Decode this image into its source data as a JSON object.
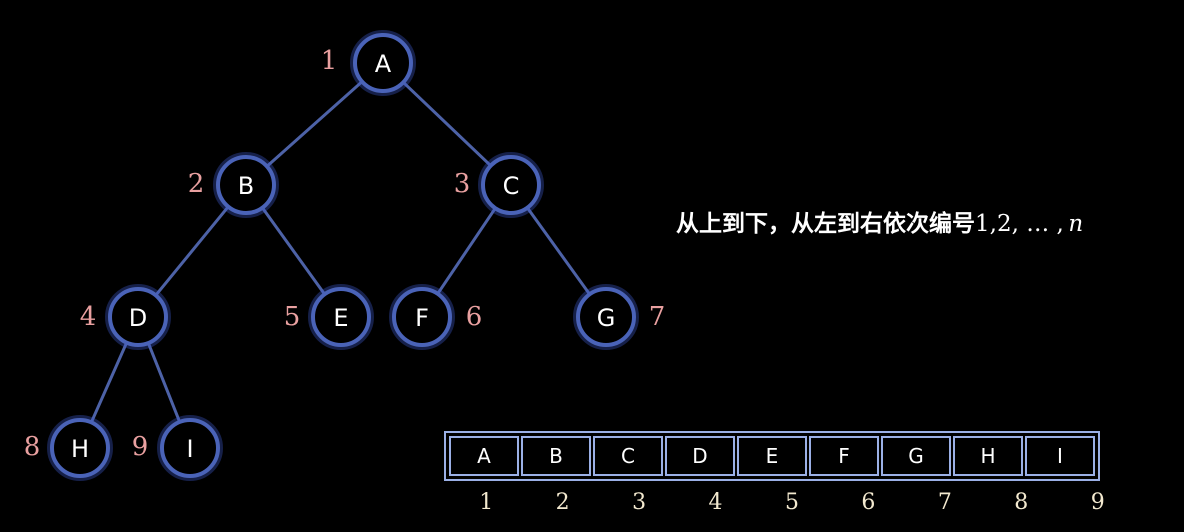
{
  "tree": {
    "nodes": [
      {
        "id": "A",
        "label": "A",
        "number": "1"
      },
      {
        "id": "B",
        "label": "B",
        "number": "2"
      },
      {
        "id": "C",
        "label": "C",
        "number": "3"
      },
      {
        "id": "D",
        "label": "D",
        "number": "4"
      },
      {
        "id": "E",
        "label": "E",
        "number": "5"
      },
      {
        "id": "F",
        "label": "F",
        "number": "6"
      },
      {
        "id": "G",
        "label": "G",
        "number": "7"
      },
      {
        "id": "H",
        "label": "H",
        "number": "8"
      },
      {
        "id": "I",
        "label": "I",
        "number": "9"
      }
    ],
    "edges": [
      [
        "A",
        "B"
      ],
      [
        "A",
        "C"
      ],
      [
        "B",
        "D"
      ],
      [
        "B",
        "E"
      ],
      [
        "C",
        "F"
      ],
      [
        "C",
        "G"
      ],
      [
        "D",
        "H"
      ],
      [
        "D",
        "I"
      ]
    ]
  },
  "caption": {
    "text": "从上到下，从左到右依次编号",
    "sequence": "1,2, … ,",
    "variable": "n"
  },
  "array": {
    "cells": [
      "A",
      "B",
      "C",
      "D",
      "E",
      "F",
      "G",
      "H",
      "I"
    ],
    "indices": [
      "1",
      "2",
      "3",
      "4",
      "5",
      "6",
      "7",
      "8",
      "9"
    ]
  },
  "colors": {
    "node_stroke": "#4a63b8",
    "edge": "#4d62a7",
    "number_label": "#e9a0a0",
    "array_border": "#9bb0e6"
  }
}
